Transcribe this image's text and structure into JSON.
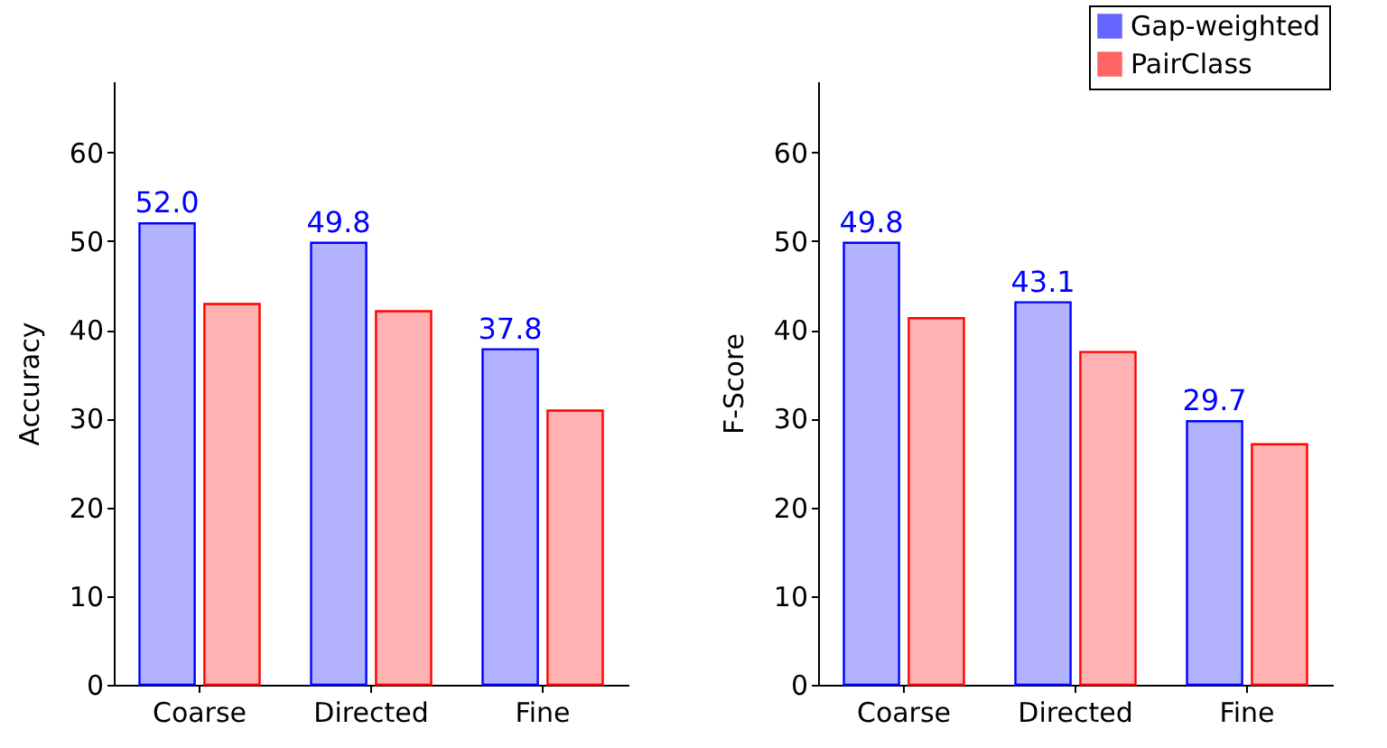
{
  "chart_data": [
    {
      "type": "bar",
      "ylabel": "Accuracy",
      "categories": [
        "Coarse",
        "Directed",
        "Fine"
      ],
      "ylim": [
        0,
        68
      ],
      "yticks": [
        0,
        10,
        20,
        30,
        40,
        50,
        60
      ],
      "grid": false,
      "legend": "top right",
      "series": [
        {
          "name": "Gap-weighted",
          "color": "#0000ff",
          "values": [
            52.0,
            49.8,
            37.8
          ],
          "value_labels": [
            "52.0",
            "49.8",
            "37.8"
          ]
        },
        {
          "name": "PairClass",
          "color": "#ff0000",
          "values": [
            42.9,
            42.1,
            30.9
          ]
        }
      ]
    },
    {
      "type": "bar",
      "ylabel": "F-Score",
      "categories": [
        "Coarse",
        "Directed",
        "Fine"
      ],
      "ylim": [
        0,
        68
      ],
      "yticks": [
        0,
        10,
        20,
        30,
        40,
        50,
        60
      ],
      "grid": false,
      "legend": "top right",
      "series": [
        {
          "name": "Gap-weighted",
          "color": "#0000ff",
          "values": [
            49.8,
            43.1,
            29.7
          ],
          "value_labels": [
            "49.8",
            "43.1",
            "29.7"
          ]
        },
        {
          "name": "PairClass",
          "color": "#ff0000",
          "values": [
            41.3,
            37.5,
            27.1
          ]
        }
      ]
    }
  ]
}
